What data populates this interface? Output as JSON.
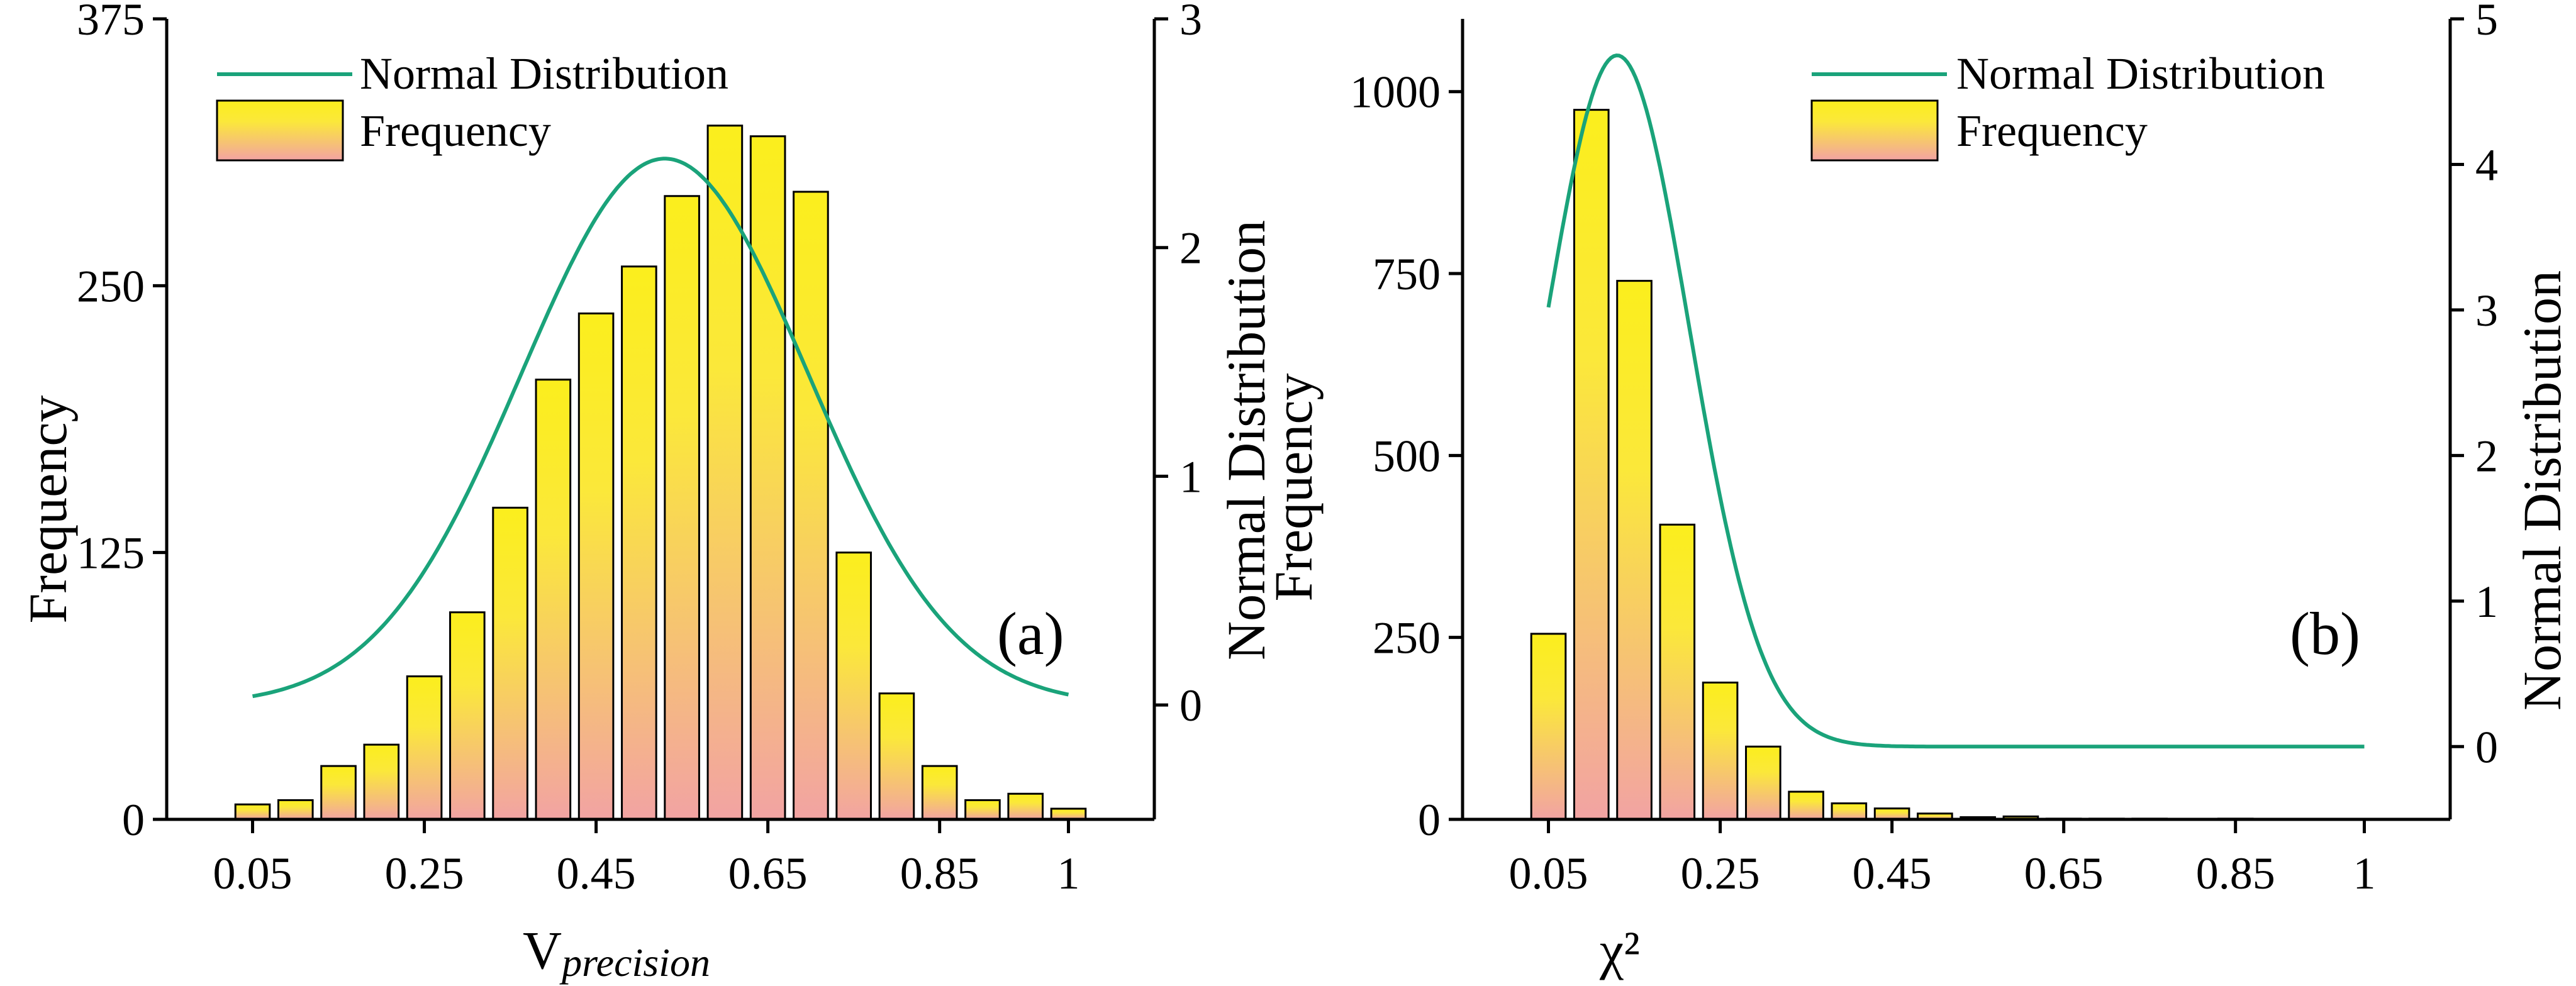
{
  "colors": {
    "bar_top": "#fbee1d",
    "bar_bottom": "#f2a3a3",
    "curve": "#1aa37a",
    "axis": "#000000"
  },
  "chart_data": [
    {
      "type": "bar",
      "panel_label": "(a)",
      "xlabel_main": "V",
      "xlabel_sub": "precision",
      "ylabel": "Frequency",
      "ylabel_right": "Normal Distribution",
      "legend": {
        "line": "Normal Distribution",
        "bar": "Frequency",
        "position": "top-left"
      },
      "xlim": [
        -0.05,
        1.1
      ],
      "ylim": [
        0,
        375
      ],
      "y2lim": [
        -0.5,
        3
      ],
      "xticks": [
        0.05,
        0.25,
        0.45,
        0.65,
        0.85,
        1
      ],
      "xtick_labels": [
        "0.05",
        "0.25",
        "0.45",
        "0.65",
        "0.85",
        "1"
      ],
      "yticks": [
        0,
        125,
        250,
        375
      ],
      "ytick_labels": [
        "0",
        "125",
        "250",
        "375"
      ],
      "y2ticks": [
        0,
        1,
        2,
        3
      ],
      "y2tick_labels": [
        "0",
        "1",
        "2",
        "3"
      ],
      "bar_width": 0.04,
      "x": [
        0.05,
        0.1,
        0.15,
        0.2,
        0.25,
        0.3,
        0.35,
        0.4,
        0.45,
        0.5,
        0.55,
        0.6,
        0.65,
        0.7,
        0.75,
        0.8,
        0.85,
        0.9,
        0.95,
        1.0
      ],
      "values": [
        7,
        9,
        25,
        35,
        67,
        97,
        146,
        206,
        237,
        259,
        292,
        325,
        320,
        294,
        125,
        59,
        25,
        9,
        12,
        5
      ],
      "curve": {
        "mean": 0.53,
        "sd": 0.167,
        "x_range": [
          0.05,
          1.0
        ]
      }
    },
    {
      "type": "bar",
      "panel_label": "(b)",
      "xlabel_main": "χ²",
      "xlabel_sub": "",
      "ylabel": "Frequency",
      "ylabel_right": "Normal Distribution",
      "legend": {
        "line": "Normal Distribution",
        "bar": "Frequency",
        "position": "top-right"
      },
      "xlim": [
        -0.05,
        1.1
      ],
      "ylim": [
        0,
        1100
      ],
      "y2lim": [
        -0.5,
        5
      ],
      "xticks": [
        0.05,
        0.25,
        0.45,
        0.65,
        0.85,
        1
      ],
      "xtick_labels": [
        "0.05",
        "0.25",
        "0.45",
        "0.65",
        "0.85",
        "1"
      ],
      "yticks": [
        0,
        250,
        500,
        750,
        1000
      ],
      "ytick_labels": [
        "0",
        "250",
        "500",
        "750",
        "1000"
      ],
      "y2ticks": [
        0,
        1,
        2,
        3,
        4,
        5
      ],
      "y2tick_labels": [
        "0",
        "1",
        "2",
        "3",
        "4",
        "5"
      ],
      "bar_width": 0.04,
      "x": [
        0.05,
        0.1,
        0.15,
        0.2,
        0.25,
        0.3,
        0.35,
        0.4,
        0.45,
        0.5,
        0.55,
        0.6,
        0.65,
        0.7,
        0.75,
        0.8,
        0.85,
        0.9
      ],
      "values": [
        255,
        975,
        740,
        405,
        188,
        100,
        38,
        22,
        15,
        8,
        3,
        4,
        1,
        1,
        1,
        0,
        1,
        0
      ],
      "curve": {
        "mean": 0.13,
        "sd": 0.084,
        "x_range": [
          0.05,
          1.0
        ]
      }
    }
  ]
}
